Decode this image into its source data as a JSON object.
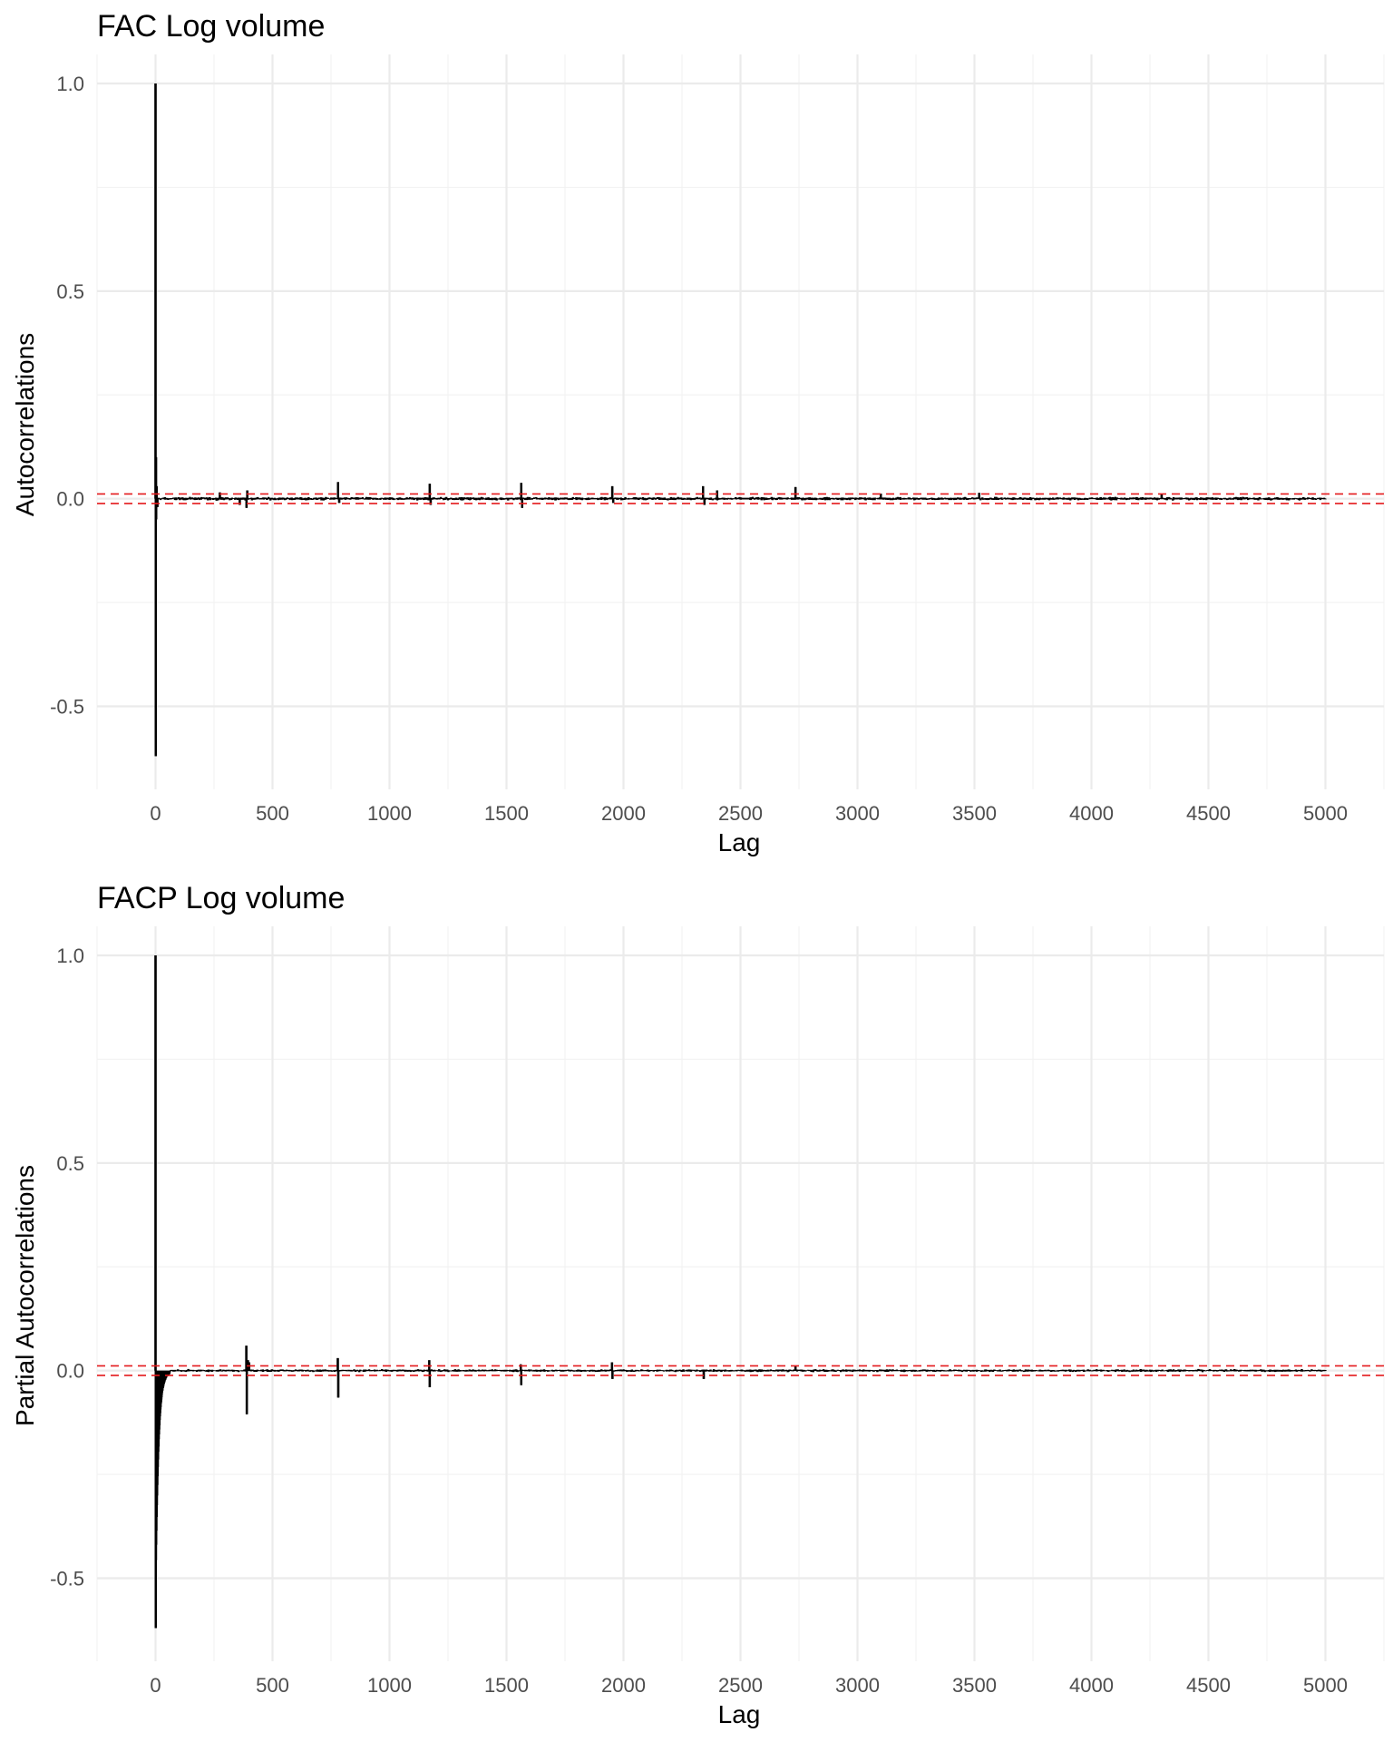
{
  "chart_data": [
    {
      "type": "bar",
      "title": "FAC Log volume",
      "xlabel": "Lag",
      "ylabel": "Autocorrelations",
      "xlim": [
        -250,
        5250
      ],
      "ylim": [
        -0.7,
        1.07
      ],
      "x_ticks": [
        0,
        500,
        1000,
        1500,
        2000,
        2500,
        3000,
        3500,
        4000,
        4500,
        5000
      ],
      "x_tick_labels": [
        "0",
        "500",
        "1000",
        "1500",
        "2000",
        "2500",
        "3000",
        "3500",
        "4000",
        "4500",
        "5000"
      ],
      "y_ticks": [
        -0.5,
        0.0,
        0.5,
        1.0
      ],
      "y_tick_labels": [
        "-0.5",
        "0.0",
        "0.5",
        "1.0"
      ],
      "grid": true,
      "confidence_bound": 0.0115,
      "max_lag": 5000,
      "noise_amplitude": 0.005,
      "spikes": [
        {
          "lag": 0,
          "value": 1.0
        },
        {
          "lag": 1,
          "value": -0.62
        },
        {
          "lag": 2,
          "value": 0.1
        },
        {
          "lag": 3,
          "value": -0.05
        },
        {
          "lag": 5,
          "value": 0.03
        },
        {
          "lag": 8,
          "value": -0.02
        },
        {
          "lag": 275,
          "value": 0.015
        },
        {
          "lag": 360,
          "value": -0.015
        },
        {
          "lag": 389,
          "value": -0.022
        },
        {
          "lag": 392,
          "value": 0.02
        },
        {
          "lag": 780,
          "value": 0.04
        },
        {
          "lag": 785,
          "value": -0.01
        },
        {
          "lag": 1172,
          "value": 0.036
        },
        {
          "lag": 1176,
          "value": -0.015
        },
        {
          "lag": 1563,
          "value": 0.038
        },
        {
          "lag": 1567,
          "value": -0.022
        },
        {
          "lag": 1952,
          "value": 0.03
        },
        {
          "lag": 1956,
          "value": -0.01
        },
        {
          "lag": 2340,
          "value": 0.03
        },
        {
          "lag": 2346,
          "value": -0.015
        },
        {
          "lag": 2400,
          "value": 0.02
        },
        {
          "lag": 2735,
          "value": 0.028
        },
        {
          "lag": 3100,
          "value": 0.012
        },
        {
          "lag": 3520,
          "value": 0.014
        },
        {
          "lag": 4300,
          "value": 0.012
        }
      ]
    },
    {
      "type": "bar",
      "title": "FACP Log volume",
      "xlabel": "Lag",
      "ylabel": "Partial Autocorrelations",
      "xlim": [
        -250,
        5250
      ],
      "ylim": [
        -0.7,
        1.07
      ],
      "x_ticks": [
        0,
        500,
        1000,
        1500,
        2000,
        2500,
        3000,
        3500,
        4000,
        4500,
        5000
      ],
      "x_tick_labels": [
        "0",
        "500",
        "1000",
        "1500",
        "2000",
        "2500",
        "3000",
        "3500",
        "4000",
        "4500",
        "5000"
      ],
      "y_ticks": [
        -0.5,
        0.0,
        0.5,
        1.0
      ],
      "y_tick_labels": [
        "-0.5",
        "0.0",
        "0.5",
        "1.0"
      ],
      "grid": true,
      "confidence_bound": 0.0115,
      "max_lag": 5000,
      "noise_amplitude": 0.004,
      "decay": {
        "start": -0.45,
        "rate": 0.085,
        "end_lag": 60
      },
      "spikes": [
        {
          "lag": 0,
          "value": 1.0
        },
        {
          "lag": 1,
          "value": -0.62
        },
        {
          "lag": 388,
          "value": 0.06
        },
        {
          "lag": 390,
          "value": -0.105
        },
        {
          "lag": 395,
          "value": 0.025
        },
        {
          "lag": 400,
          "value": 0.02
        },
        {
          "lag": 779,
          "value": 0.03
        },
        {
          "lag": 781,
          "value": -0.065
        },
        {
          "lag": 1170,
          "value": 0.025
        },
        {
          "lag": 1172,
          "value": -0.04
        },
        {
          "lag": 1561,
          "value": 0.015
        },
        {
          "lag": 1563,
          "value": -0.035
        },
        {
          "lag": 1951,
          "value": 0.02
        },
        {
          "lag": 1953,
          "value": -0.02
        },
        {
          "lag": 2343,
          "value": -0.02
        },
        {
          "lag": 2735,
          "value": 0.01
        }
      ]
    }
  ]
}
